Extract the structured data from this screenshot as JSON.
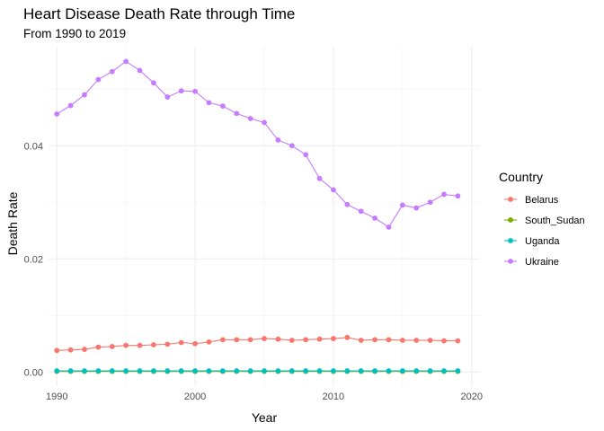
{
  "chart_data": {
    "type": "line",
    "title": "Heart Disease Death Rate through Time",
    "subtitle": "From 1990 to 2019",
    "xlabel": "Year",
    "ylabel": "Death Rate",
    "xlim": [
      1989.4,
      2020.6
    ],
    "ylim": [
      -0.0025,
      0.0575
    ],
    "x_ticks": [
      1990,
      2000,
      2010,
      2020
    ],
    "x_tick_labels": [
      "1990",
      "2000",
      "2010",
      "2020"
    ],
    "y_ticks": [
      0,
      0.02,
      0.04
    ],
    "y_tick_labels": [
      "0.00",
      "0.02",
      "0.04"
    ],
    "x_minor_ticks": [
      1995,
      2005,
      2015
    ],
    "y_minor_ticks": [
      0.01,
      0.03,
      0.05
    ],
    "grid": true,
    "markers": true,
    "legend": {
      "title": "Country",
      "placement": "right"
    },
    "x": [
      1990,
      1991,
      1992,
      1993,
      1994,
      1995,
      1996,
      1997,
      1998,
      1999,
      2000,
      2001,
      2002,
      2003,
      2004,
      2005,
      2006,
      2007,
      2008,
      2009,
      2010,
      2011,
      2012,
      2013,
      2014,
      2015,
      2016,
      2017,
      2018,
      2019
    ],
    "series": [
      {
        "name": "Belarus",
        "color": "#F8766D",
        "values": [
          0.0038,
          0.0039,
          0.004,
          0.0044,
          0.0045,
          0.0047,
          0.0047,
          0.0048,
          0.0049,
          0.0052,
          0.005,
          0.0053,
          0.0057,
          0.0057,
          0.0057,
          0.0059,
          0.0058,
          0.0056,
          0.0057,
          0.0058,
          0.0059,
          0.0061,
          0.0056,
          0.0057,
          0.0057,
          0.0056,
          0.0056,
          0.0056,
          0.0055,
          0.0055
        ]
      },
      {
        "name": "South_Sudan",
        "color": "#7CAE00",
        "values": [
          0.0001,
          0.0001,
          0.0001,
          0.0001,
          0.0001,
          0.0001,
          0.0001,
          0.0001,
          0.0001,
          0.0001,
          0.0001,
          0.0001,
          0.0001,
          0.0001,
          0.0001,
          0.0001,
          0.0001,
          0.0001,
          0.0001,
          0.0001,
          0.0001,
          0.0001,
          0.0001,
          0.0001,
          0.0001,
          0.0001,
          0.0001,
          0.0001,
          0.0001,
          0.0001
        ]
      },
      {
        "name": "Uganda",
        "color": "#00BFC4",
        "values": [
          0.0002,
          0.0002,
          0.0002,
          0.0002,
          0.0002,
          0.0002,
          0.0002,
          0.0002,
          0.0002,
          0.0002,
          0.0002,
          0.0002,
          0.0002,
          0.0002,
          0.0002,
          0.0002,
          0.0002,
          0.0002,
          0.0002,
          0.0002,
          0.0002,
          0.0002,
          0.0002,
          0.0002,
          0.0002,
          0.0002,
          0.0002,
          0.0002,
          0.0002,
          0.0002
        ]
      },
      {
        "name": "Ukraine",
        "color": "#C77CFF",
        "values": [
          0.0456,
          0.0471,
          0.049,
          0.0517,
          0.0531,
          0.0549,
          0.0533,
          0.0511,
          0.0486,
          0.0497,
          0.0496,
          0.0476,
          0.047,
          0.0457,
          0.0448,
          0.0441,
          0.041,
          0.04,
          0.0384,
          0.0342,
          0.0322,
          0.0296,
          0.0284,
          0.0272,
          0.0256,
          0.0295,
          0.029,
          0.03,
          0.0314,
          0.0311
        ]
      }
    ]
  }
}
